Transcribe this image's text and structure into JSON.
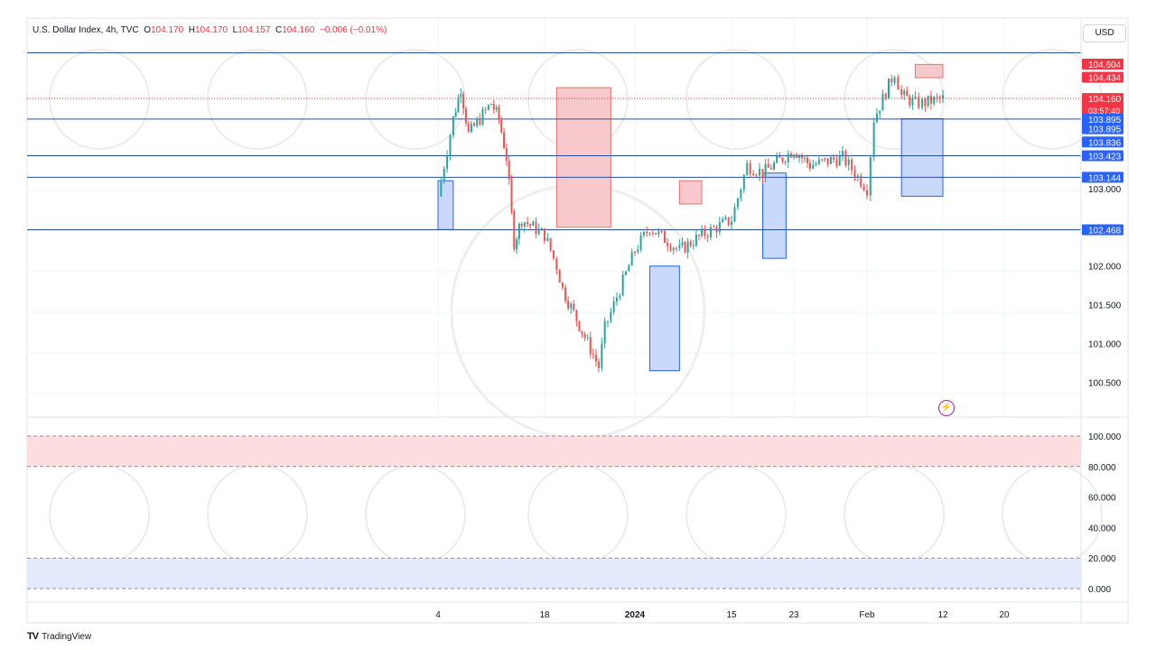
{
  "header": {
    "symbol": "U.S. Dollar Index, 4h, TVC",
    "o_label": "O",
    "o_value": "104.170",
    "h_label": "H",
    "h_value": "104.170",
    "l_label": "L",
    "l_value": "104.157",
    "c_label": "C",
    "c_value": "104.160",
    "change": "−0.006 (−0.01%)"
  },
  "currency": "USD",
  "branding": "TradingView",
  "countdown": "03:57:40",
  "colors": {
    "bull": "#26a69a",
    "bear": "#ef5350",
    "line": "#2962ff",
    "price_tag": "#f23645",
    "level_tag": "#2962ff",
    "zone_red": "#f8c9cc",
    "zone_blue": "#c9d9fb",
    "rsi_band_red": "#fddde0",
    "rsi_band_blue": "#e3eafc"
  },
  "chart_data": [
    {
      "type": "candlestick",
      "title": "U.S. Dollar Index, 4h, TVC",
      "x_ticks": [
        "4",
        "18",
        "2024",
        "15",
        "23",
        "Feb",
        "12",
        "20"
      ],
      "ylim": [
        100.3,
        105.0
      ],
      "y_ticks": [
        "100.500",
        "101.000",
        "101.500",
        "102.000",
        "103.000"
      ],
      "last_price": "104.160",
      "ohlc_last": {
        "open": 104.17,
        "high": 104.17,
        "low": 104.157,
        "close": 104.16
      },
      "price_path": [
        {
          "x": "Dec 4",
          "y": 102.9
        },
        {
          "x": "Dec 6",
          "y": 103.9
        },
        {
          "x": "Dec 7",
          "y": 104.3
        },
        {
          "x": "Dec 8",
          "y": 103.7
        },
        {
          "x": "Dec 11",
          "y": 104.1
        },
        {
          "x": "Dec 12",
          "y": 103.9
        },
        {
          "x": "Dec 13",
          "y": 103.4
        },
        {
          "x": "Dec 14",
          "y": 102.3
        },
        {
          "x": "Dec 15",
          "y": 102.6
        },
        {
          "x": "Dec 18",
          "y": 102.4
        },
        {
          "x": "Dec 20",
          "y": 102.0
        },
        {
          "x": "Dec 21",
          "y": 101.7
        },
        {
          "x": "Dec 27",
          "y": 100.7
        },
        {
          "x": "Dec 28",
          "y": 101.2
        },
        {
          "x": "Jan 2",
          "y": 102.2
        },
        {
          "x": "Jan 4",
          "y": 102.5
        },
        {
          "x": "Jan 8",
          "y": 102.2
        },
        {
          "x": "Jan 11",
          "y": 102.4
        },
        {
          "x": "Jan 15",
          "y": 102.6
        },
        {
          "x": "Jan 17",
          "y": 103.3
        },
        {
          "x": "Jan 19",
          "y": 103.2
        },
        {
          "x": "Jan 23",
          "y": 103.5
        },
        {
          "x": "Jan 25",
          "y": 103.3
        },
        {
          "x": "Jan 29",
          "y": 103.4
        },
        {
          "x": "Feb 1",
          "y": 103.0
        },
        {
          "x": "Feb 2",
          "y": 103.9
        },
        {
          "x": "Feb 5",
          "y": 104.5
        },
        {
          "x": "Feb 6",
          "y": 104.2
        },
        {
          "x": "Feb 8",
          "y": 104.1
        },
        {
          "x": "Feb 9",
          "y": 104.1
        },
        {
          "x": "Feb 12",
          "y": 104.16
        }
      ],
      "horizontal_levels": [
        102.468,
        103.144,
        103.423,
        103.895,
        104.75
      ],
      "price_labels": [
        "104.604",
        "104.434",
        "104.160",
        "103.895",
        "103.895",
        "103.836",
        "103.423",
        "103.144",
        "102.468"
      ],
      "zones_red": [
        {
          "from": "Dec 20",
          "to": "Dec 29",
          "top": 104.3,
          "bottom": 102.5
        },
        {
          "from": "Jan 8",
          "to": "Jan 11",
          "top": 103.1,
          "bottom": 102.8
        },
        {
          "from": "Feb 8",
          "to": "Feb 12",
          "top": 104.6,
          "bottom": 104.43
        }
      ],
      "zones_blue": [
        {
          "from": "Dec 4",
          "to": "Dec 6",
          "top": 103.1,
          "bottom": 102.47
        },
        {
          "from": "Jan 4",
          "to": "Jan 8",
          "top": 102.0,
          "bottom": 100.65
        },
        {
          "from": "Jan 19",
          "to": "Jan 22",
          "top": 103.2,
          "bottom": 102.1
        },
        {
          "from": "Feb 6",
          "to": "Feb 12",
          "top": 103.9,
          "bottom": 102.9
        }
      ]
    },
    {
      "type": "oscillator",
      "ylim": [
        0,
        100
      ],
      "y_ticks": [
        "100.000",
        "80.000",
        "60.000",
        "40.000",
        "20.000",
        "0.000"
      ],
      "bands": [
        {
          "from": 80,
          "to": 100,
          "color": "red"
        },
        {
          "from": 0,
          "to": 20,
          "color": "blue"
        }
      ]
    }
  ]
}
